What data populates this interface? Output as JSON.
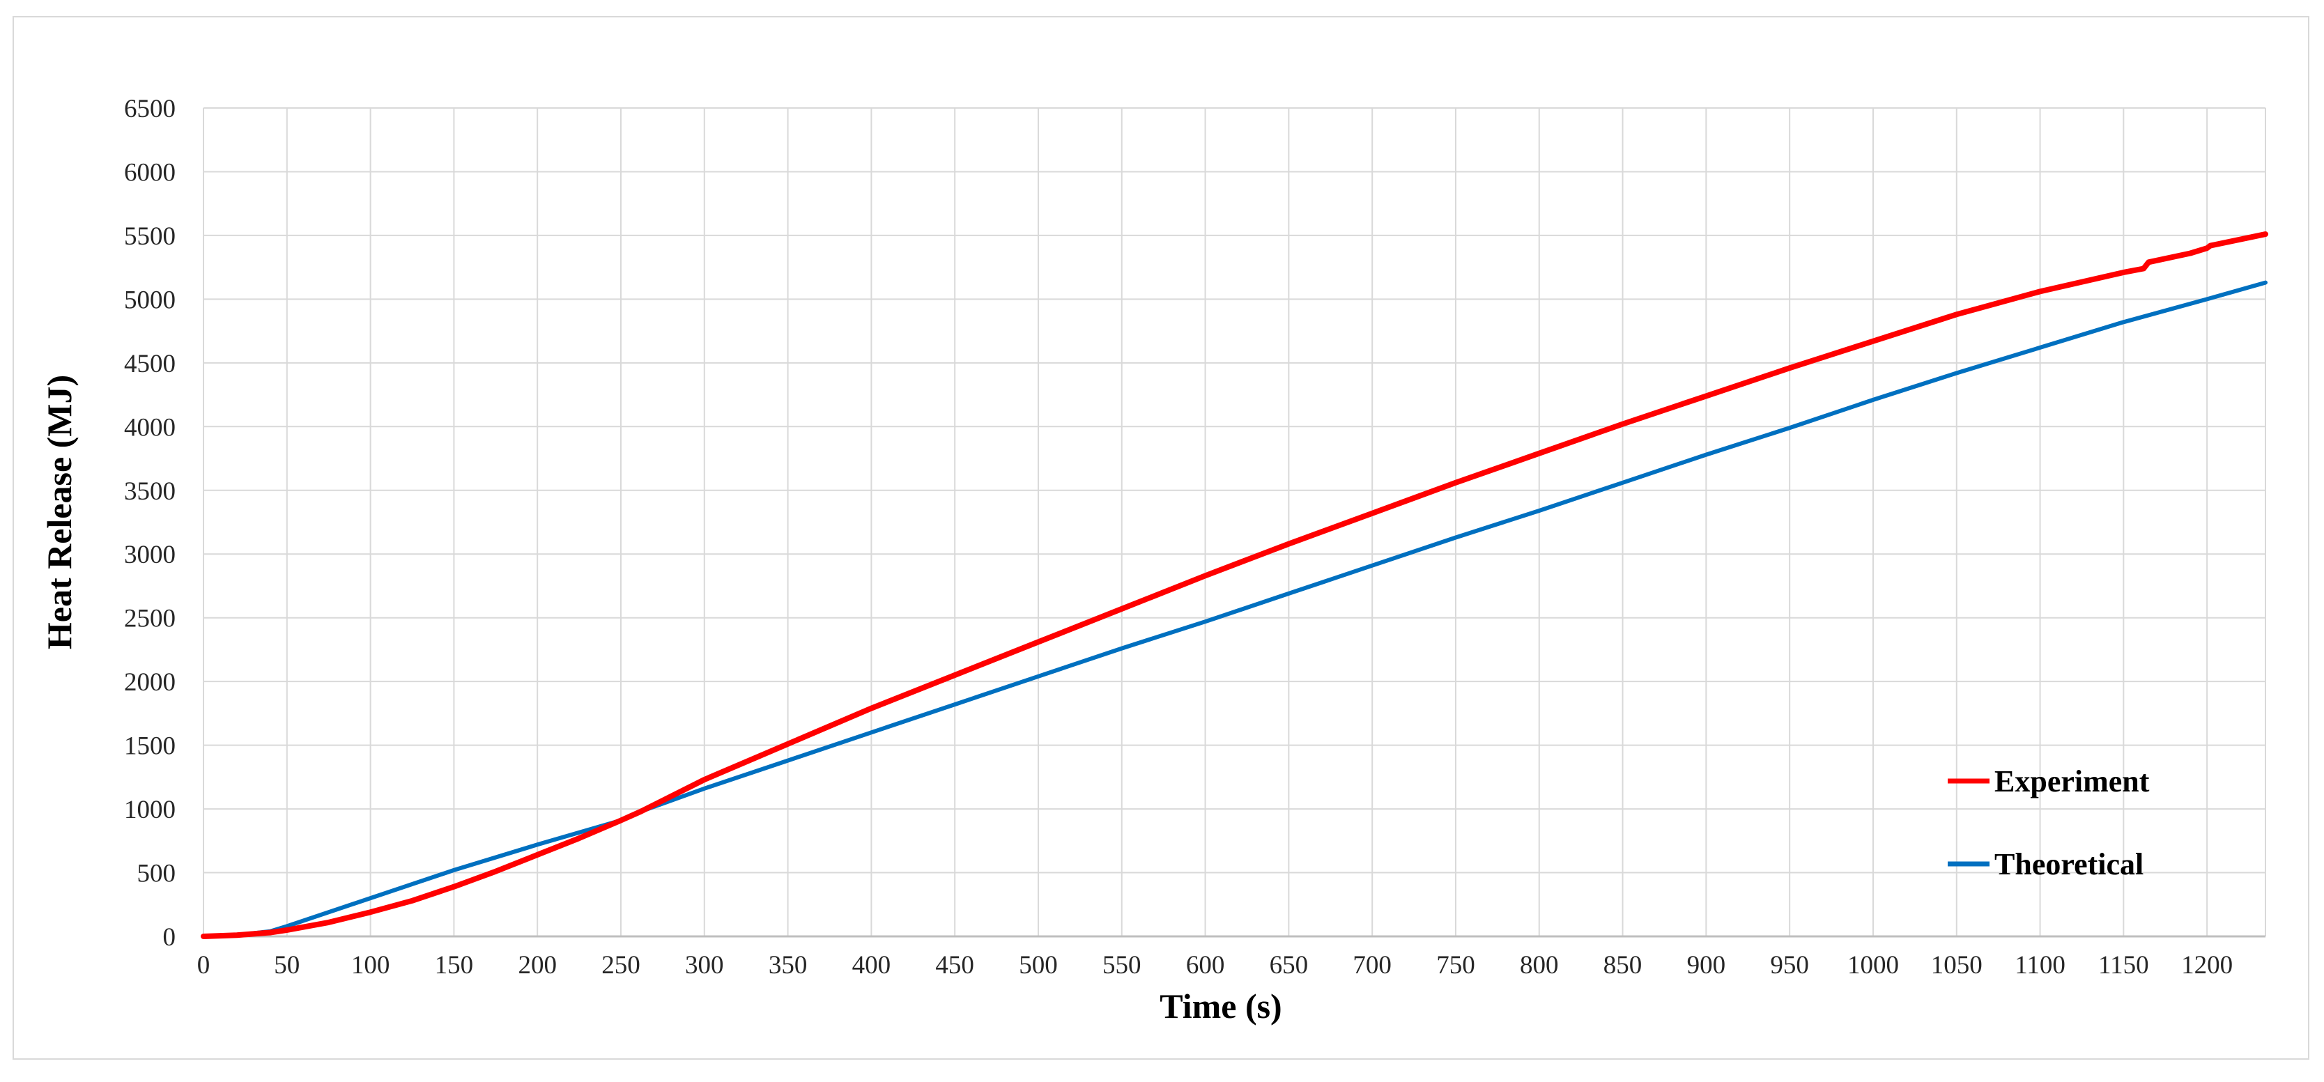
{
  "chart_data": {
    "type": "line",
    "title": "",
    "xlabel": "Time (s)",
    "ylabel": "Heat Release (MJ)",
    "xlim": [
      0,
      1235
    ],
    "ylim": [
      0,
      6500
    ],
    "x_ticks": [
      0,
      50,
      100,
      150,
      200,
      250,
      300,
      350,
      400,
      450,
      500,
      550,
      600,
      650,
      700,
      750,
      800,
      850,
      900,
      950,
      1000,
      1050,
      1100,
      1150,
      1200
    ],
    "y_ticks": [
      0,
      500,
      1000,
      1500,
      2000,
      2500,
      3000,
      3500,
      4000,
      4500,
      5000,
      5500,
      6000,
      6500
    ],
    "grid": true,
    "legend_position": "bottom-right",
    "series": [
      {
        "name": "Experiment",
        "color": "#ff0000",
        "x": [
          0,
          20,
          40,
          50,
          75,
          100,
          125,
          150,
          175,
          200,
          225,
          250,
          262,
          300,
          350,
          400,
          450,
          500,
          550,
          600,
          650,
          700,
          750,
          800,
          850,
          900,
          950,
          1000,
          1050,
          1100,
          1150,
          1162,
          1165,
          1190,
          1200,
          1202,
          1235
        ],
        "y": [
          0,
          10,
          30,
          50,
          110,
          190,
          280,
          390,
          510,
          640,
          770,
          910,
          980,
          1230,
          1510,
          1790,
          2050,
          2310,
          2570,
          2830,
          3080,
          3320,
          3560,
          3790,
          4020,
          4240,
          4460,
          4670,
          4880,
          5060,
          5210,
          5240,
          5290,
          5360,
          5400,
          5420,
          5510
        ]
      },
      {
        "name": "Theoretical",
        "color": "#0070c0",
        "x": [
          0,
          20,
          40,
          50,
          100,
          150,
          200,
          250,
          262,
          300,
          350,
          400,
          450,
          500,
          550,
          600,
          650,
          700,
          750,
          800,
          850,
          900,
          950,
          1000,
          1050,
          1100,
          1150,
          1200,
          1235
        ],
        "y": [
          0,
          10,
          40,
          80,
          300,
          520,
          720,
          910,
          980,
          1160,
          1380,
          1600,
          1820,
          2040,
          2260,
          2470,
          2690,
          2910,
          3130,
          3340,
          3560,
          3780,
          3990,
          4210,
          4420,
          4620,
          4820,
          5000,
          5130
        ]
      }
    ]
  }
}
